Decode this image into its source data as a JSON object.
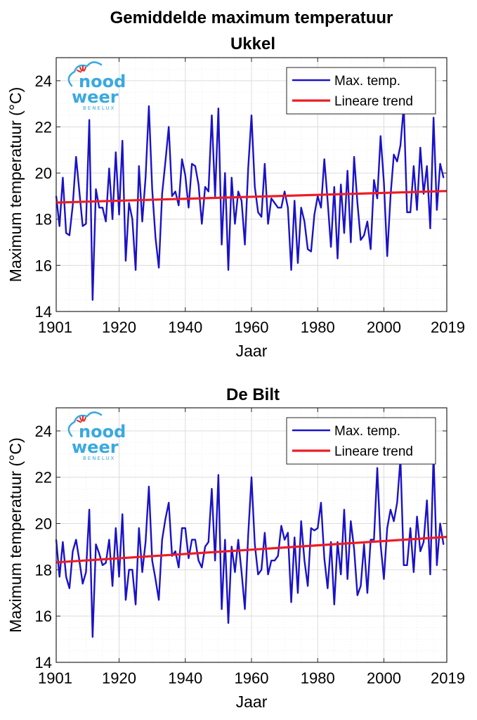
{
  "figure": {
    "title_line1": "Gemiddelde maximum temperatuur",
    "watermark": {
      "line1": "nood",
      "line2": "weer",
      "line3": "BENELUX"
    }
  },
  "colors": {
    "series": "#1a12c8",
    "trend": "#ee1c24",
    "logo_blue": "#3aa9e0",
    "logo_red": "#e52421"
  },
  "chart_data": [
    {
      "type": "line",
      "title": "Ukkel",
      "xlabel": "Jaar",
      "ylabel": "Maximum temperatuur (°C)",
      "xlim": [
        1901,
        2019
      ],
      "ylim": [
        14,
        25
      ],
      "xticks": [
        1901,
        1920,
        1940,
        1960,
        1980,
        2000,
        2019
      ],
      "yticks": [
        14,
        16,
        18,
        20,
        22,
        24
      ],
      "grid": true,
      "legend_position": "top-right",
      "x_start": 1901,
      "series": [
        {
          "name": "Max. temp.",
          "values": [
            19.0,
            17.7,
            19.8,
            17.4,
            17.3,
            18.6,
            20.7,
            19.2,
            17.7,
            17.8,
            22.3,
            14.5,
            19.3,
            18.5,
            18.5,
            17.9,
            20.2,
            18.0,
            20.9,
            18.2,
            21.4,
            16.2,
            18.7,
            18.0,
            15.8,
            20.3,
            17.9,
            19.8,
            22.9,
            19.3,
            17.2,
            15.9,
            19.1,
            20.5,
            22.0,
            19.0,
            19.2,
            18.6,
            20.6,
            19.9,
            18.5,
            20.4,
            20.3,
            19.5,
            17.8,
            19.4,
            19.2,
            22.5,
            19.0,
            22.8,
            16.9,
            20.0,
            15.8,
            19.8,
            17.8,
            19.2,
            18.8,
            16.9,
            20.2,
            22.5,
            19.4,
            18.3,
            18.1,
            20.4,
            17.8,
            18.9,
            18.7,
            18.5,
            18.5,
            19.2,
            18.5,
            15.8,
            18.8,
            16.1,
            18.5,
            17.9,
            16.7,
            16.6,
            18.2,
            19.0,
            18.5,
            20.6,
            18.8,
            16.8,
            19.4,
            16.3,
            19.5,
            17.4,
            20.1,
            17.0,
            20.7,
            18.7,
            17.1,
            17.3,
            17.9,
            16.7,
            19.7,
            18.9,
            21.6,
            19.6,
            16.4,
            19.0,
            20.8,
            20.5,
            21.2,
            22.9,
            18.3,
            18.3,
            20.3,
            18.4,
            21.1,
            19.1,
            20.3,
            17.6,
            22.4,
            18.4,
            20.4,
            19.8
          ]
        },
        {
          "name": "Lineare trend",
          "values": [
            18.72,
            19.22
          ]
        }
      ]
    },
    {
      "type": "line",
      "title": "De Bilt",
      "xlabel": "Jaar",
      "ylabel": "Maximum temperatuur (°C)",
      "xlim": [
        1901,
        2019
      ],
      "ylim": [
        14,
        25
      ],
      "xticks": [
        1901,
        1920,
        1940,
        1960,
        1980,
        2000,
        2019
      ],
      "yticks": [
        14,
        16,
        18,
        20,
        22,
        24
      ],
      "grid": true,
      "legend_position": "top-right",
      "x_start": 1901,
      "series": [
        {
          "name": "Max. temp.",
          "values": [
            19.3,
            17.7,
            19.2,
            17.7,
            17.2,
            18.8,
            19.3,
            18.4,
            17.4,
            17.9,
            20.6,
            15.1,
            19.1,
            18.7,
            18.2,
            18.3,
            19.3,
            17.3,
            19.8,
            17.7,
            20.4,
            16.7,
            18.0,
            18.0,
            16.5,
            19.8,
            17.9,
            19.2,
            21.6,
            18.4,
            17.6,
            16.7,
            19.3,
            20.2,
            20.9,
            18.6,
            18.8,
            18.1,
            19.8,
            19.8,
            18.5,
            19.3,
            19.3,
            18.4,
            18.1,
            19.0,
            19.2,
            21.5,
            18.4,
            22.1,
            16.3,
            19.3,
            15.7,
            19.0,
            17.9,
            19.3,
            17.9,
            16.3,
            19.5,
            22.0,
            19.1,
            17.8,
            18.0,
            19.6,
            17.8,
            18.4,
            18.4,
            18.6,
            19.9,
            19.3,
            19.6,
            16.6,
            19.4,
            17.0,
            20.1,
            18.4,
            17.3,
            19.8,
            19.7,
            19.8,
            20.9,
            18.5,
            17.2,
            19.2,
            16.5,
            19.2,
            17.8,
            20.6,
            17.6,
            20.1,
            18.9,
            16.9,
            17.3,
            19.1,
            17.0,
            19.3,
            19.3,
            22.4,
            19.1,
            17.6,
            19.8,
            20.6,
            20.1,
            20.9,
            22.8,
            18.2,
            18.2,
            19.8,
            17.9,
            20.3,
            18.8,
            19.2,
            21.0,
            17.8,
            23.0,
            18.2,
            20.0,
            19.1
          ]
        },
        {
          "name": "Lineare trend",
          "values": [
            18.32,
            19.42
          ]
        }
      ]
    }
  ]
}
